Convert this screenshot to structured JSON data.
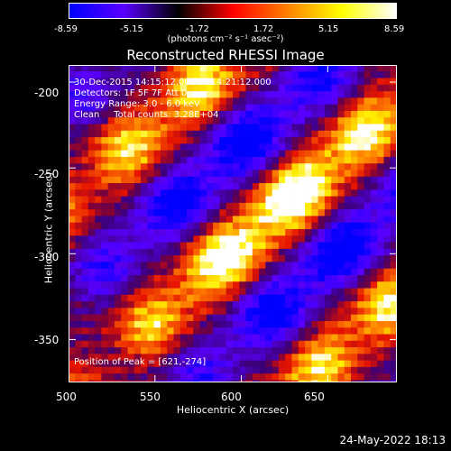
{
  "colorbar": {
    "ticks": [
      "-8.59",
      "-5.15",
      "-1.72",
      "1.72",
      "5.15",
      "8.59"
    ],
    "units_label": "(photons cm⁻² s⁻¹ asec⁻²)",
    "colors": [
      "#0000ff",
      "#5a00ff",
      "#000000",
      "#ff0000",
      "#ff8000",
      "#ffff00",
      "#ffffff"
    ]
  },
  "chart_data": {
    "type": "heatmap",
    "title": "Reconstructed RHESSI Image",
    "xlabel": "Heliocentric X (arcsec)",
    "ylabel": "Heliocentric Y (arcsec)",
    "xlim": [
      500,
      690
    ],
    "ylim": [
      -375,
      -190
    ],
    "xticks": [
      "500",
      "550",
      "600",
      "650"
    ],
    "yticks": [
      "-200",
      "-250",
      "-300",
      "-350"
    ],
    "value_range": [
      -8.59,
      8.59
    ],
    "peak": {
      "x": 621,
      "y": -274
    }
  },
  "annotations": {
    "time_range": "30-Dec-2015 14:15:12.000 to 14:21:12.000",
    "detectors": "Detectors: 1F 5F 7F Att 0",
    "energy": "Energy Range: 3.0 - 6.0 keV",
    "clean": "Clean     Total counts: 3.28E+04",
    "peak_position": "Position of Peak = [621,-274]"
  },
  "footer": {
    "date": "24-May-2022 18:13"
  }
}
